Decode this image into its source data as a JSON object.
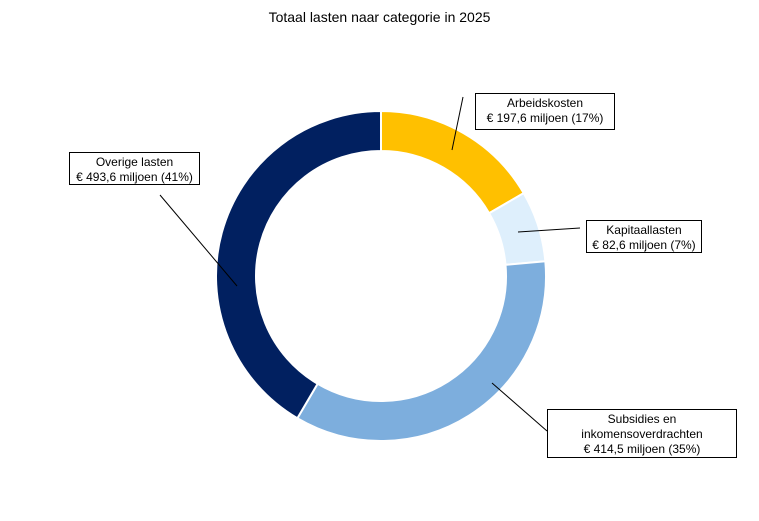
{
  "chart_data": {
    "type": "pie",
    "variant": "donut",
    "title": "Totaal lasten naar categorie in 2025",
    "unit": "€ miljoen",
    "start": "top",
    "direction": "clockwise",
    "slices": [
      {
        "name": "Arbeidskosten",
        "value": 197.6,
        "percent": 17,
        "color": "#FFC000",
        "label_lines": [
          "Arbeidskosten",
          "€ 197,6 miljoen (17%)"
        ]
      },
      {
        "name": "Kapitaallasten",
        "value": 82.6,
        "percent": 7,
        "color": "#DEEFFC",
        "label_lines": [
          "Kapitaallasten",
          "€ 82,6 miljoen (7%)"
        ]
      },
      {
        "name": "Subsidies en inkomensoverdrachten",
        "value": 414.5,
        "percent": 35,
        "color": "#7DAEDD",
        "label_lines": [
          "Subsidies en",
          "inkomensoverdrachten",
          "€ 414,5 miljoen (35%)"
        ]
      },
      {
        "name": "Overige lasten",
        "value": 493.6,
        "percent": 41,
        "color": "#012060",
        "label_lines": [
          "Overige lasten",
          "€ 493,6 miljoen (41%)"
        ]
      }
    ]
  }
}
